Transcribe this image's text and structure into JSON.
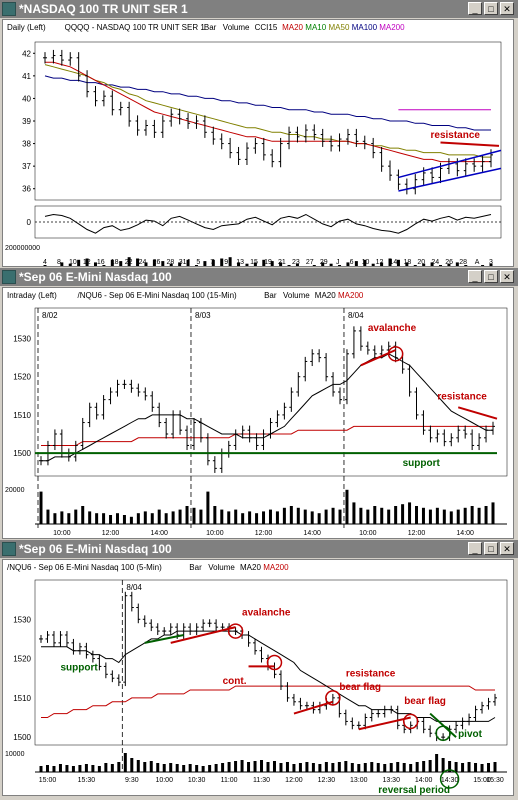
{
  "windows": [
    {
      "title": "*NASDAQ 100 TR UNIT SER 1",
      "header": [
        {
          "t": "Daily (Left)",
          "c": "#000"
        },
        {
          "t": "QQQQ - NASDAQ 100 TR UNIT SER 1",
          "c": "#000"
        },
        {
          "t": "Bar",
          "c": "#000"
        },
        {
          "t": "Volume",
          "c": "#000"
        },
        {
          "t": "CCI15",
          "c": "#000"
        },
        {
          "t": "MA20",
          "c": "#c00000"
        },
        {
          "t": "MA10",
          "c": "#008000"
        },
        {
          "t": "MA50",
          "c": "#808000"
        },
        {
          "t": "MA100",
          "c": "#000080"
        },
        {
          "t": "MA200",
          "c": "#c000c0"
        }
      ],
      "yticks": [
        "42",
        "41",
        "40",
        "39",
        "38",
        "37",
        "36"
      ],
      "xticks": [
        "4",
        "8",
        "10",
        "12",
        "16",
        "18",
        "22",
        "24",
        "26",
        "28",
        "31J",
        "5",
        "7",
        "9",
        "13",
        "15",
        "19",
        "21",
        "23",
        "27",
        "29",
        "J",
        "6",
        "10",
        "12",
        "14",
        "18",
        "20",
        "24",
        "26",
        "28",
        "A",
        "3"
      ],
      "vol_label": "200000000",
      "cci_label": "0",
      "annotations": {
        "resistance": "resistance"
      }
    },
    {
      "title": "*Sep 06  E-Mini Nasdaq 100",
      "header": [
        {
          "t": "Intraday (Left)",
          "c": "#000"
        },
        {
          "t": "/NQU6 - Sep 06  E-Mini Nasdaq 100 (15-Min)",
          "c": "#000"
        },
        {
          "t": "Bar",
          "c": "#000"
        },
        {
          "t": "Volume",
          "c": "#000"
        },
        {
          "t": "MA20",
          "c": "#000"
        },
        {
          "t": "MA200",
          "c": "#c00000"
        }
      ],
      "yticks": [
        "1530",
        "1520",
        "1510",
        "1500"
      ],
      "xticks": [
        "10:00",
        "12:00",
        "14:00",
        "10:00",
        "12:00",
        "14:00",
        "10:00",
        "12:00",
        "14:00"
      ],
      "dates": [
        "8/02",
        "8/03",
        "8/04"
      ],
      "vol_label": "20000",
      "annotations": {
        "avalanche": "avalanche",
        "resistance": "resistance",
        "support": "support"
      }
    },
    {
      "title": "*Sep 06  E-Mini Nasdaq 100",
      "header": [
        {
          "t": "/NQU6 - Sep 06  E-Mini Nasdaq 100 (5-Min)",
          "c": "#000"
        },
        {
          "t": "Bar",
          "c": "#000"
        },
        {
          "t": "Volume",
          "c": "#000"
        },
        {
          "t": "MA20",
          "c": "#000"
        },
        {
          "t": "MA200",
          "c": "#c00000"
        }
      ],
      "yticks": [
        "1530",
        "1520",
        "1510",
        "1500"
      ],
      "xticks": [
        "15:00",
        "15:30",
        "9:30",
        "10:00",
        "10:30",
        "11:00",
        "11:30",
        "12:00",
        "12:30",
        "13:00",
        "13:30",
        "14:00",
        "14:30",
        "15:00",
        "15:30"
      ],
      "dates": [
        "8/04"
      ],
      "vol_label": "10000",
      "annotations": {
        "support": "support",
        "avalanche": "avalanche",
        "cont": "cont.",
        "resistance": "resistance",
        "bearflag1": "bear flag",
        "bearflag2": "bear flag",
        "pivot": "pivot",
        "reversal": "reversal period"
      }
    }
  ],
  "colors": {
    "bar": "#000000",
    "ma_fast": "#000000",
    "ma200": "#c00000",
    "ma10": "#008000",
    "ma50": "#808000",
    "ma100": "#000080",
    "ma200_daily": "#c000c0",
    "annot": "#c00000",
    "support": "#006000",
    "trend": "#0000c0"
  },
  "chart_data": [
    {
      "type": "bar",
      "title": "QQQQ - NASDAQ 100 TR UNIT SER 1",
      "ylim": [
        35.5,
        42.5
      ],
      "close": [
        41.8,
        41.9,
        41.7,
        41.8,
        41.0,
        40.3,
        39.9,
        40.1,
        39.5,
        39.6,
        39.0,
        38.6,
        38.8,
        38.5,
        39.0,
        39.3,
        39.1,
        38.9,
        39.0,
        38.5,
        38.2,
        38.0,
        37.6,
        37.3,
        37.8,
        38.0,
        37.5,
        37.2,
        38.0,
        38.5,
        38.3,
        38.6,
        38.4,
        38.1,
        37.9,
        38.2,
        38.4,
        38.1,
        38.0,
        37.6,
        37.0,
        36.6,
        36.2,
        36.0,
        36.4,
        36.7,
        36.5,
        36.9,
        37.1,
        36.8,
        37.1,
        37.0,
        37.2,
        37.5
      ],
      "ma20": [
        41.6,
        41.6,
        41.5,
        41.4,
        41.2,
        41.0,
        40.8,
        40.6,
        40.4,
        40.2,
        40.0,
        39.8,
        39.6,
        39.4,
        39.3,
        39.2,
        39.1,
        39.0,
        38.9,
        38.8,
        38.7,
        38.6,
        38.5,
        38.4,
        38.3,
        38.3,
        38.2,
        38.1,
        38.1,
        38.1,
        38.1,
        38.1,
        38.1,
        38.1,
        38.1,
        38.1,
        38.1,
        38.0,
        38.0,
        37.9,
        37.8,
        37.7,
        37.6,
        37.5,
        37.4,
        37.3,
        37.3,
        37.2,
        37.2,
        37.2,
        37.2,
        37.2,
        37.2,
        37.2
      ],
      "ma50": [
        41.5,
        41.4,
        41.3,
        41.2,
        41.1,
        41.0,
        40.8,
        40.7,
        40.5,
        40.4,
        40.2,
        40.1,
        39.9,
        39.8,
        39.7,
        39.6,
        39.5,
        39.4,
        39.3,
        39.2,
        39.1,
        39.0,
        38.9,
        38.8,
        38.7,
        38.7,
        38.6,
        38.5,
        38.5,
        38.4,
        38.4,
        38.3,
        38.3,
        38.2,
        38.2,
        38.1,
        38.1,
        38.0,
        38.0,
        37.9,
        37.9,
        37.8,
        37.8,
        37.7,
        37.7,
        37.6,
        37.6,
        37.6,
        37.5,
        37.5,
        37.5,
        37.5,
        37.4,
        37.4
      ],
      "ma100": [
        41.0,
        40.9,
        40.9,
        40.8,
        40.8,
        40.7,
        40.7,
        40.6,
        40.6,
        40.5,
        40.5,
        40.4,
        40.4,
        40.3,
        40.3,
        40.2,
        40.2,
        40.1,
        40.1,
        40.0,
        40.0,
        39.9,
        39.9,
        39.8,
        39.8,
        39.7,
        39.7,
        39.6,
        39.6,
        39.5,
        39.5,
        39.5,
        39.4,
        39.4,
        39.3,
        39.3,
        39.3,
        39.2,
        39.2,
        39.1,
        39.1,
        39.0,
        39.0,
        39.0,
        38.9,
        38.9,
        38.8,
        38.8,
        38.8,
        38.7,
        38.7,
        38.6,
        38.6,
        38.6
      ],
      "ma200": [
        39.5,
        39.5,
        39.5,
        39.5,
        39.5,
        39.5,
        39.5,
        39.5,
        39.5,
        39.5,
        39.5,
        39.5,
        39.5,
        39.5,
        39.5,
        39.5,
        39.5,
        39.5,
        39.5,
        39.5,
        39.5,
        39.5,
        39.5,
        39.5,
        39.5,
        39.5,
        39.5,
        39.5,
        39.5,
        39.5,
        39.5,
        39.5,
        39.5,
        39.5,
        39.5,
        39.5,
        39.5,
        39.5,
        39.5,
        39.5,
        39.5,
        39.5,
        39.5,
        39.5,
        39.5,
        39.5,
        39.5,
        39.5,
        39.5,
        39.5,
        39.5,
        39.5,
        39.5,
        39.5
      ],
      "volume": [
        0.5,
        0.45,
        0.6,
        0.55,
        0.7,
        0.75,
        0.6,
        0.5,
        0.7,
        0.65,
        0.8,
        0.75,
        0.6,
        0.7,
        0.65,
        0.55,
        0.6,
        0.7,
        0.5,
        0.65,
        0.7,
        0.75,
        0.8,
        0.6,
        0.55,
        0.6,
        0.7,
        0.65,
        0.6,
        0.5,
        0.55,
        0.45,
        0.5,
        0.6,
        0.55,
        0.5,
        0.6,
        0.65,
        0.7,
        0.55,
        0.6,
        0.75,
        0.7,
        0.6,
        0.5,
        0.55,
        0.6,
        0.5,
        0.55,
        0.6,
        0.5,
        0.45,
        0.5,
        0.55
      ],
      "cci": [
        60,
        80,
        70,
        40,
        -20,
        -80,
        -120,
        -60,
        -40,
        -90,
        -70,
        -30,
        20,
        10,
        -40,
        40,
        60,
        20,
        -20,
        -60,
        -80,
        -40,
        -30,
        -20,
        30,
        50,
        10,
        -30,
        40,
        60,
        40,
        80,
        30,
        -20,
        -50,
        10,
        30,
        -20,
        -40,
        -70,
        -90,
        -100,
        -120,
        -80,
        -20,
        30,
        10,
        40,
        60,
        20,
        50,
        40,
        60,
        80
      ]
    },
    {
      "type": "bar",
      "title": "/NQU6 - Sep 06  E-Mini Nasdaq 100 (15-Min)",
      "ylim": [
        1494,
        1538
      ],
      "close": [
        1498,
        1502,
        1505,
        1500,
        1499,
        1502,
        1508,
        1512,
        1510,
        1514,
        1516,
        1518,
        1518,
        1517,
        1516,
        1515,
        1512,
        1508,
        1505,
        1510,
        1506,
        1502,
        1508,
        1504,
        1498,
        1496,
        1500,
        1502,
        1505,
        1506,
        1504,
        1502,
        1505,
        1508,
        1510,
        1512,
        1516,
        1520,
        1524,
        1526,
        1525,
        1520,
        1516,
        1514,
        1526,
        1532,
        1528,
        1527,
        1526,
        1527,
        1528,
        1525,
        1522,
        1516,
        1510,
        1506,
        1504,
        1505,
        1503,
        1504,
        1506,
        1505,
        1502,
        1504,
        1506,
        1507
      ],
      "ma20": [
        1498,
        1498,
        1499,
        1499,
        1499,
        1500,
        1501,
        1502,
        1503,
        1504,
        1505,
        1506,
        1507,
        1508,
        1509,
        1509,
        1510,
        1510,
        1510,
        1510,
        1510,
        1509,
        1509,
        1508,
        1507,
        1506,
        1505,
        1505,
        1505,
        1504,
        1504,
        1504,
        1504,
        1505,
        1506,
        1507,
        1509,
        1511,
        1513,
        1515,
        1516,
        1517,
        1518,
        1518,
        1519,
        1521,
        1523,
        1524,
        1525,
        1525,
        1526,
        1525,
        1524,
        1523,
        1521,
        1519,
        1517,
        1515,
        1513,
        1511,
        1510,
        1509,
        1508,
        1507,
        1506,
        1506
      ],
      "ma200": [
        1502,
        1502,
        1502,
        1502,
        1502,
        1502,
        1503,
        1503,
        1503,
        1503,
        1503,
        1503,
        1503,
        1503,
        1504,
        1504,
        1504,
        1504,
        1504,
        1504,
        1504,
        1504,
        1504,
        1504,
        1504,
        1504,
        1504,
        1504,
        1505,
        1505,
        1505,
        1505,
        1505,
        1505,
        1505,
        1505,
        1505,
        1506,
        1506,
        1506,
        1506,
        1506,
        1506,
        1506,
        1506,
        1507,
        1507,
        1507,
        1507,
        1507,
        1507,
        1507,
        1507,
        1507,
        1507,
        1507,
        1507,
        1507,
        1507,
        1507,
        1507,
        1507,
        1507,
        1507,
        1507,
        1507
      ],
      "support": 1500,
      "volume": [
        0.9,
        0.4,
        0.3,
        0.35,
        0.3,
        0.4,
        0.5,
        0.35,
        0.3,
        0.3,
        0.25,
        0.3,
        0.25,
        0.2,
        0.3,
        0.35,
        0.3,
        0.4,
        0.3,
        0.35,
        0.4,
        0.5,
        0.45,
        0.4,
        0.9,
        0.5,
        0.4,
        0.35,
        0.4,
        0.3,
        0.35,
        0.3,
        0.35,
        0.4,
        0.35,
        0.45,
        0.5,
        0.45,
        0.4,
        0.35,
        0.3,
        0.4,
        0.45,
        0.4,
        0.95,
        0.6,
        0.45,
        0.4,
        0.5,
        0.45,
        0.4,
        0.5,
        0.55,
        0.6,
        0.5,
        0.45,
        0.4,
        0.45,
        0.4,
        0.35,
        0.4,
        0.45,
        0.5,
        0.45,
        0.5,
        0.6
      ]
    },
    {
      "type": "bar",
      "title": "/NQU6 - Sep 06  E-Mini Nasdaq 100 (5-Min)",
      "ylim": [
        1498,
        1540
      ],
      "close": [
        1525,
        1526,
        1524,
        1526,
        1524,
        1522,
        1523,
        1521,
        1520,
        1518,
        1516,
        1515,
        1514,
        1536,
        1533,
        1530,
        1529,
        1528,
        1527,
        1527,
        1528,
        1526,
        1528,
        1527,
        1528,
        1529,
        1529,
        1528,
        1528,
        1527,
        1527,
        1526,
        1524,
        1522,
        1520,
        1518,
        1516,
        1513,
        1510,
        1509,
        1508,
        1508,
        1507,
        1508,
        1509,
        1510,
        1506,
        1504,
        1503,
        1503,
        1505,
        1506,
        1506,
        1507,
        1507,
        1503,
        1502,
        1503,
        1504,
        1502,
        1501,
        1500,
        1500,
        1502,
        1503,
        1504,
        1505,
        1507,
        1508,
        1509,
        1510
      ],
      "ma20": [
        1523,
        1523,
        1523,
        1523,
        1523,
        1522,
        1522,
        1522,
        1521,
        1521,
        1520,
        1520,
        1519,
        1521,
        1522,
        1523,
        1524,
        1525,
        1525,
        1526,
        1526,
        1527,
        1527,
        1527,
        1527,
        1527,
        1527,
        1527,
        1527,
        1527,
        1527,
        1526,
        1526,
        1525,
        1524,
        1523,
        1522,
        1521,
        1520,
        1519,
        1517,
        1516,
        1515,
        1514,
        1513,
        1512,
        1511,
        1510,
        1509,
        1508,
        1508,
        1507,
        1507,
        1507,
        1507,
        1506,
        1506,
        1506,
        1505,
        1505,
        1505,
        1504,
        1504,
        1504,
        1504,
        1504,
        1504,
        1504,
        1504,
        1504,
        1505
      ],
      "ma200": [
        1505,
        1505,
        1506,
        1506,
        1506,
        1507,
        1507,
        1507,
        1508,
        1508,
        1508,
        1509,
        1509,
        1509,
        1510,
        1510,
        1510,
        1510,
        1511,
        1511,
        1511,
        1511,
        1511,
        1512,
        1512,
        1512,
        1512,
        1512,
        1512,
        1512,
        1513,
        1513,
        1513,
        1513,
        1513,
        1513,
        1513,
        1513,
        1513,
        1513,
        1513,
        1513,
        1513,
        1513,
        1513,
        1513,
        1513,
        1513,
        1513,
        1513,
        1513,
        1513,
        1513,
        1513,
        1513,
        1513,
        1513,
        1513,
        1513,
        1513,
        1513,
        1513,
        1513,
        1513,
        1513,
        1513,
        1513,
        1512,
        1512,
        1512,
        1512
      ],
      "volume": [
        0.3,
        0.35,
        0.3,
        0.4,
        0.35,
        0.3,
        0.35,
        0.4,
        0.35,
        0.3,
        0.45,
        0.4,
        0.5,
        0.95,
        0.7,
        0.6,
        0.5,
        0.55,
        0.45,
        0.4,
        0.45,
        0.4,
        0.35,
        0.4,
        0.35,
        0.3,
        0.35,
        0.4,
        0.45,
        0.5,
        0.55,
        0.6,
        0.5,
        0.55,
        0.6,
        0.5,
        0.55,
        0.45,
        0.5,
        0.4,
        0.45,
        0.5,
        0.45,
        0.4,
        0.5,
        0.45,
        0.5,
        0.55,
        0.45,
        0.4,
        0.45,
        0.5,
        0.45,
        0.4,
        0.45,
        0.5,
        0.45,
        0.4,
        0.5,
        0.55,
        0.6,
        0.9,
        0.7,
        0.55,
        0.5,
        0.45,
        0.5,
        0.45,
        0.4,
        0.45,
        0.5
      ]
    }
  ]
}
